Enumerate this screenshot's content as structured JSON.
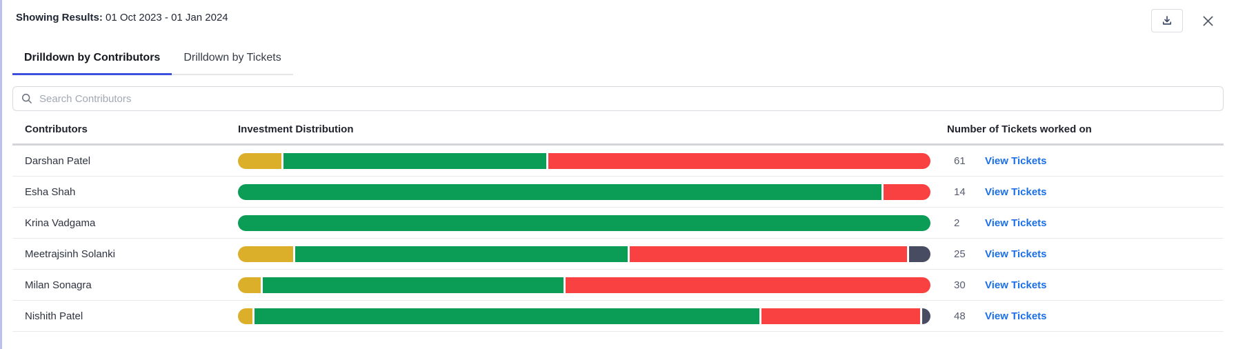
{
  "header": {
    "label": "Showing Results:",
    "date_range": "01 Oct 2023 - 01 Jan 2024"
  },
  "tabs": [
    {
      "label": "Drilldown by Contributors",
      "active": true
    },
    {
      "label": "Drilldown by Tickets",
      "active": false
    }
  ],
  "search": {
    "placeholder": "Search Contributors",
    "value": ""
  },
  "table": {
    "columns": [
      "Contributors",
      "Investment Distribution",
      "Number of Tickets worked on"
    ],
    "link_label": "View Tickets",
    "rows": [
      {
        "name": "Darshan Patel",
        "tickets": "61",
        "segments": [
          {
            "color": "amber",
            "pct": 6.3
          },
          {
            "color": "green",
            "pct": 37.9
          },
          {
            "color": "red",
            "pct": 55.8
          }
        ]
      },
      {
        "name": "Esha Shah",
        "tickets": "14",
        "segments": [
          {
            "color": "green",
            "pct": 92.9
          },
          {
            "color": "red",
            "pct": 7.1
          }
        ]
      },
      {
        "name": "Krina Vadgama",
        "tickets": "2",
        "segments": [
          {
            "color": "green",
            "pct": 100
          }
        ]
      },
      {
        "name": "Meetrajsinh Solanki",
        "tickets": "25",
        "segments": [
          {
            "color": "amber",
            "pct": 8
          },
          {
            "color": "green",
            "pct": 48
          },
          {
            "color": "red",
            "pct": 40
          },
          {
            "color": "slate",
            "pct": 4
          }
        ]
      },
      {
        "name": "Milan Sonagra",
        "tickets": "30",
        "segments": [
          {
            "color": "amber",
            "pct": 3.3
          },
          {
            "color": "green",
            "pct": 43.4
          },
          {
            "color": "red",
            "pct": 53.3
          }
        ]
      },
      {
        "name": "Nishith Patel",
        "tickets": "48",
        "segments": [
          {
            "color": "amber",
            "pct": 2.1
          },
          {
            "color": "green",
            "pct": 72.9
          },
          {
            "color": "red",
            "pct": 22.9
          },
          {
            "color": "slate",
            "pct": 2.1
          }
        ]
      }
    ]
  },
  "colors": {
    "amber": "#DCAF2B",
    "green": "#0B9D56",
    "red": "#FA4141",
    "slate": "#484C62",
    "link_blue": "#1B6FE8",
    "tab_underline": "#3D50DD",
    "accent_edge": "#B9C1EE"
  }
}
